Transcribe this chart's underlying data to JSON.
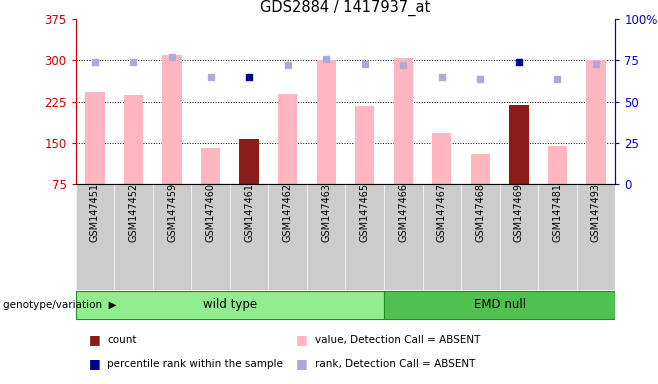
{
  "title": "GDS2884 / 1417937_at",
  "samples": [
    "GSM147451",
    "GSM147452",
    "GSM147459",
    "GSM147460",
    "GSM147461",
    "GSM147462",
    "GSM147463",
    "GSM147465",
    "GSM147466",
    "GSM147467",
    "GSM147468",
    "GSM147469",
    "GSM147481",
    "GSM147493"
  ],
  "n_wild": 8,
  "n_emd": 6,
  "bar_values": [
    243,
    237,
    310,
    141,
    157,
    239,
    300,
    218,
    305,
    168,
    130,
    220,
    145,
    300
  ],
  "bar_colors": [
    "#FFB6C1",
    "#FFB6C1",
    "#FFB6C1",
    "#FFB6C1",
    "#8B1A1A",
    "#FFB6C1",
    "#FFB6C1",
    "#FFB6C1",
    "#FFB6C1",
    "#FFB6C1",
    "#FFB6C1",
    "#8B1A1A",
    "#FFB6C1",
    "#FFB6C1"
  ],
  "rank_dots_pct": [
    74,
    74,
    77,
    65,
    65,
    72,
    76,
    73,
    72,
    65,
    64,
    74,
    64,
    73
  ],
  "rank_dot_colors": [
    "#AAAADD",
    "#AAAADD",
    "#AAAADD",
    "#AAAADD",
    "#00008B",
    "#AAAADD",
    "#AAAADD",
    "#AAAADD",
    "#AAAADD",
    "#AAAADD",
    "#AAAADD",
    "#00008B",
    "#AAAADD",
    "#AAAADD"
  ],
  "ylim_left": [
    75,
    375
  ],
  "ylim_right": [
    0,
    100
  ],
  "yticks_left": [
    75,
    150,
    225,
    300,
    375
  ],
  "yticks_right": [
    0,
    25,
    50,
    75,
    100
  ],
  "ytick_right_labels": [
    "0",
    "25",
    "50",
    "75",
    "100%"
  ],
  "hlines": [
    150,
    225,
    300
  ],
  "left_color": "#CC0000",
  "right_color": "#0000CC",
  "wt_color": "#90EE90",
  "emd_color": "#50C050",
  "genotype_label": "genotype/variation",
  "legend_items": [
    {
      "label": "count",
      "color": "#8B1A1A"
    },
    {
      "label": "percentile rank within the sample",
      "color": "#00008B"
    },
    {
      "label": "value, Detection Call = ABSENT",
      "color": "#FFB6C1"
    },
    {
      "label": "rank, Detection Call = ABSENT",
      "color": "#AAAADD"
    }
  ],
  "bar_width": 0.5
}
